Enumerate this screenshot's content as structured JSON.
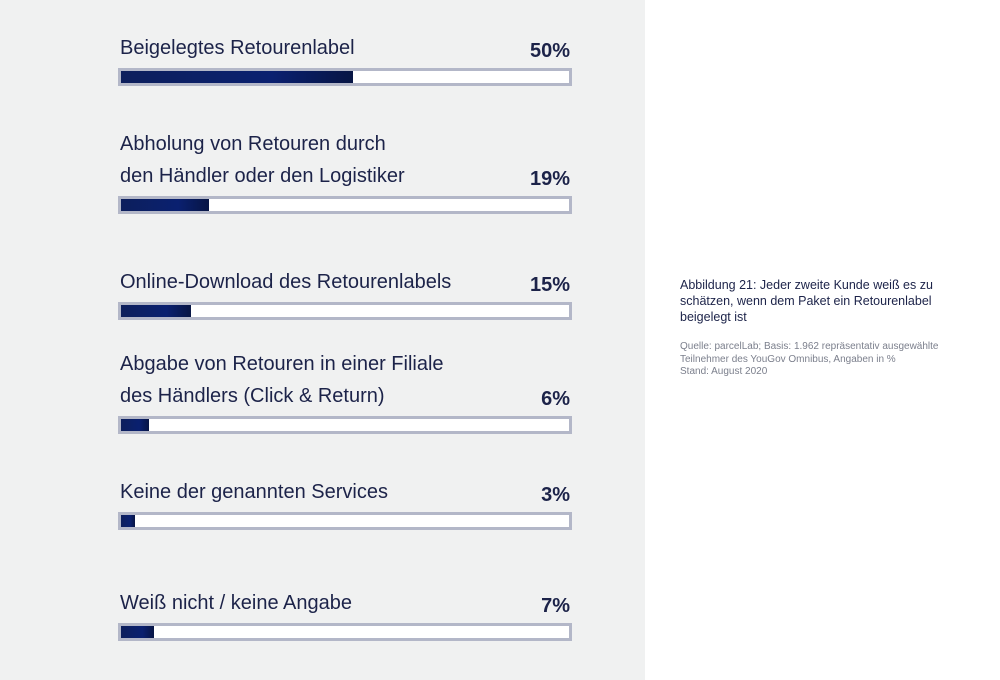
{
  "chart_data": {
    "type": "bar",
    "orientation": "horizontal",
    "unit": "%",
    "xlim": [
      0,
      100
    ],
    "categories": [
      "Beigelegtes Retourenlabel",
      "Abholung von Retouren durch den Händler oder den Logistiker",
      "Online-Download des Retourenlabels",
      "Abgabe von Retouren in einer Filiale des Händlers (Click & Return)",
      "Keine der genannten Services",
      "Weiß nicht / keine Angabe"
    ],
    "values": [
      50,
      19,
      15,
      6,
      3,
      7
    ],
    "value_labels": [
      "50%",
      "19%",
      "15%",
      "6%",
      "3%",
      "7%"
    ],
    "label_lines": [
      [
        "Beigelegtes Retourenlabel"
      ],
      [
        "Abholung von Retouren durch",
        "den Händler oder den Logistiker"
      ],
      [
        "Online-Download des Retourenlabels"
      ],
      [
        "Abgabe von Retouren in einer Filiale",
        "des Händlers (Click & Return)"
      ],
      [
        "Keine der genannten Services"
      ],
      [
        "Weiß nicht / keine Angabe"
      ]
    ],
    "colors": {
      "bar": "#0d1f5c",
      "track": "#ffffff",
      "track_border": "#b3b7c8",
      "text": "#1c2349"
    }
  },
  "caption": {
    "title": "Abbildung 21: Jeder zweite Kunde weiß es zu schätzen, wenn dem Paket ein Retourenlabel beigelegt ist",
    "source": "Quelle: parcelLab; Basis: 1.962 repräsentativ ausgewählte Teilnehmer des YouGov Omnibus, Angaben in %\nStand: August 2020"
  }
}
